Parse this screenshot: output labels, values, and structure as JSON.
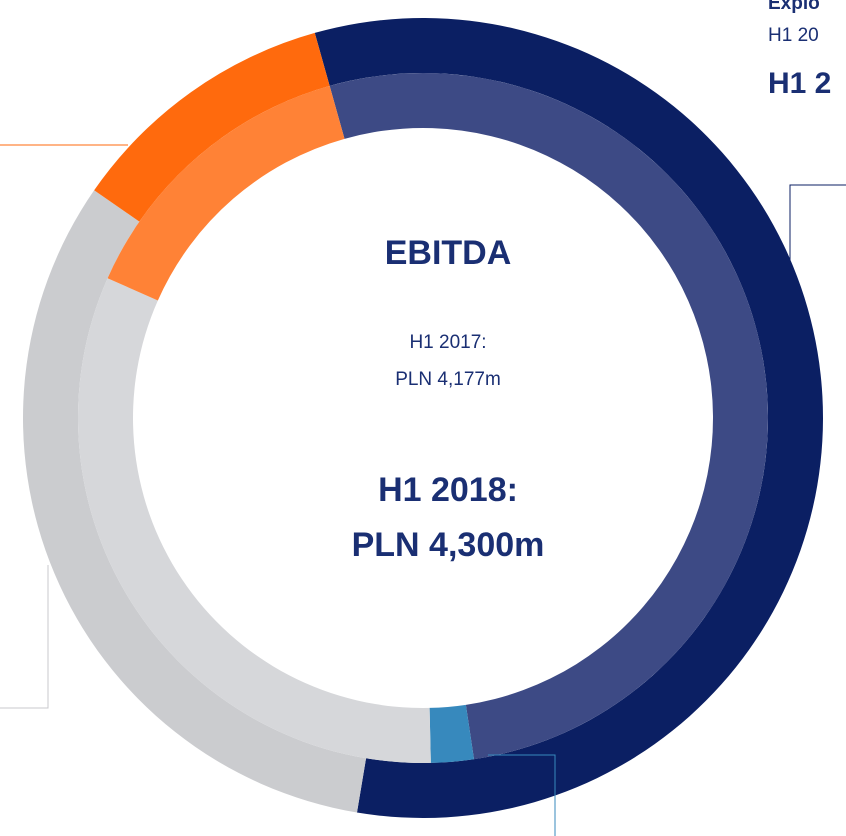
{
  "chart_data": {
    "type": "donut",
    "title": "EBITDA",
    "annotations": [
      "H1 2017:",
      "PLN 4,177m",
      "H1 2018:",
      "PLN 4,300m"
    ],
    "side_labels": [
      "Explo",
      "H1 20",
      "H1 2"
    ],
    "series": [
      {
        "colors": [
          "#0b1f63",
          "#cbcccf",
          "#ff6a0d"
        ],
        "values": [
          57,
          32,
          11
        ]
      },
      {
        "colors": [
          "#3d4a85",
          "#3789bd",
          "#d6d7da",
          "#ff8236"
        ],
        "values": [
          52,
          2,
          32,
          14
        ]
      }
    ]
  }
}
